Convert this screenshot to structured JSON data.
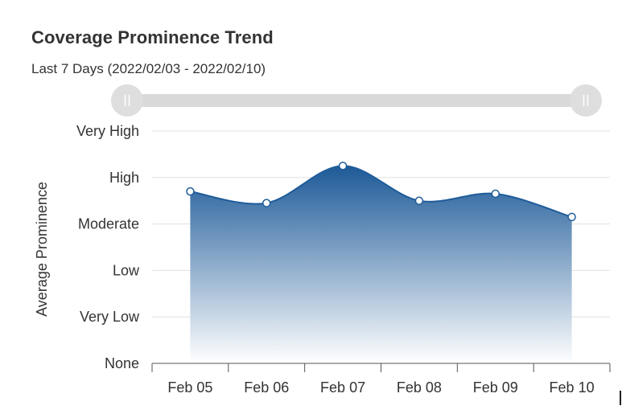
{
  "title": "Coverage Prominence Trend",
  "subtitle": "Last 7 Days (2022/02/03 - 2022/02/10)",
  "colors": {
    "series": "#1f5c99",
    "area_top": "#1d5a98",
    "area_bottom": "#ffffff",
    "grid": "#e0e0e0",
    "slider_track": "#d9d9d9",
    "slider_handle": "#dedede"
  },
  "slider": {
    "handle_left_icon": "grip-icon",
    "handle_right_icon": "grip-icon"
  },
  "chart_data": {
    "type": "area",
    "ylabel": "Average Prominence",
    "y_levels": [
      "None",
      "Very Low",
      "Low",
      "Moderate",
      "High",
      "Very High"
    ],
    "ylim": [
      0,
      5
    ],
    "categories": [
      "Feb 05",
      "Feb 06",
      "Feb 07",
      "Feb 08",
      "Feb 09",
      "Feb 10"
    ],
    "series": [
      {
        "values": [
          3.7,
          3.45,
          4.25,
          3.5,
          3.65,
          3.15
        ]
      }
    ],
    "grid": true,
    "smooth": true
  }
}
